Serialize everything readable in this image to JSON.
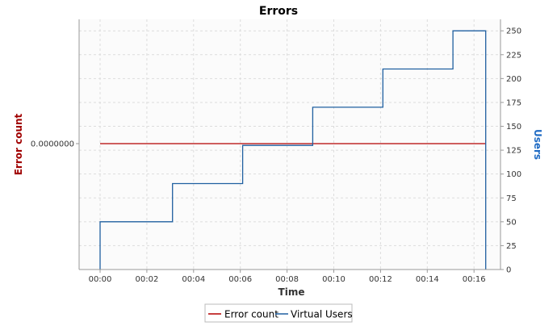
{
  "chart_data": {
    "type": "line",
    "title": "Errors",
    "xlabel": "Time",
    "ylabel_left": "Error count",
    "ylabel_right": "Users",
    "x_ticks": [
      "00:00",
      "00:02",
      "00:04",
      "00:06",
      "00:08",
      "00:10",
      "00:12",
      "00:14",
      "00:16"
    ],
    "x_unit": "minutes",
    "xlim": [
      -0.6,
      17.2
    ],
    "y_left_ticks": [
      "0.0000000"
    ],
    "y_right_ticks": [
      "0",
      "25",
      "50",
      "75",
      "100",
      "125",
      "150",
      "175",
      "200",
      "225",
      "250"
    ],
    "y_right_lim": [
      0,
      262
    ],
    "grid": true,
    "legend_position": "bottom",
    "colors": {
      "error_series": "#b40000",
      "users_series": "#1f5fa0",
      "plot_bg": "#fbfbfb",
      "grid": "#dddddd",
      "left_axis_label": "#a00000",
      "right_axis_label": "#1f6bc4"
    },
    "series": [
      {
        "name": "Error count",
        "axis": "left",
        "x": [
          0,
          16.5
        ],
        "y": [
          0,
          0
        ]
      },
      {
        "name": "Virtual Users",
        "axis": "right",
        "step": true,
        "x": [
          0,
          0,
          3.1,
          3.1,
          6.1,
          6.1,
          9.1,
          9.1,
          12.1,
          12.1,
          15.1,
          15.1,
          16.5,
          16.5
        ],
        "y": [
          0,
          50,
          50,
          90,
          90,
          130,
          130,
          170,
          170,
          210,
          210,
          250,
          250,
          0
        ]
      }
    ]
  }
}
